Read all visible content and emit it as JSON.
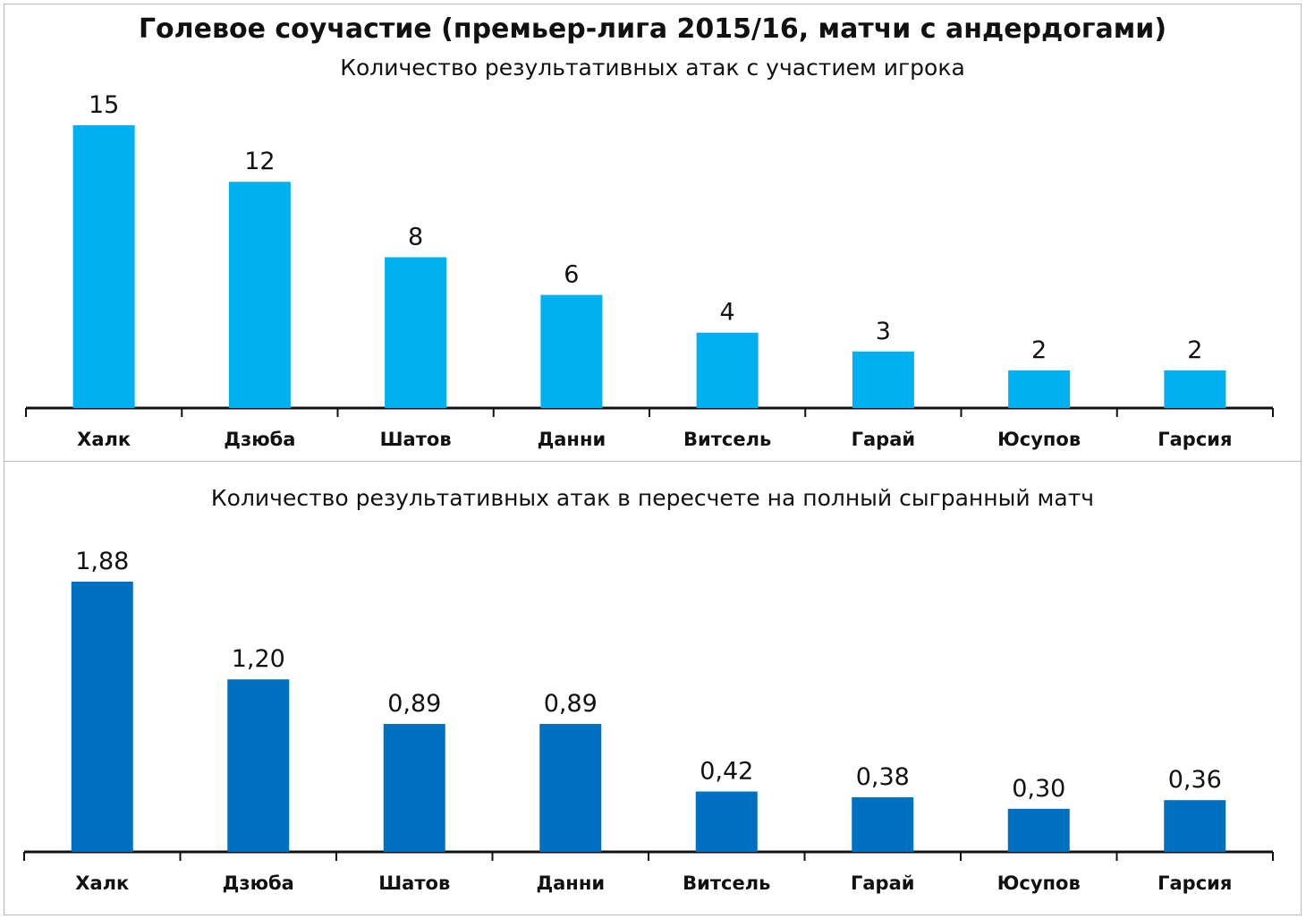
{
  "colors": {
    "top_bar": "#00b0f0",
    "bottom_bar": "#0070c0",
    "axis": "#111111"
  },
  "title": "Голевое соучастие (премьер-лига 2015/16, матчи с андердогами)",
  "chart_data": [
    {
      "type": "bar",
      "title": "Голевое соучастие (премьер-лига 2015/16, матчи с андердогами)",
      "subtitle": "Количество результативных атак с участием игрока",
      "categories": [
        "Халк",
        "Дзюба",
        "Шатов",
        "Данни",
        "Витсель",
        "Гарай",
        "Юсупов",
        "Гарсия"
      ],
      "values": [
        15,
        12,
        8,
        6,
        4,
        3,
        2,
        2
      ],
      "labels": [
        "15",
        "12",
        "8",
        "6",
        "4",
        "3",
        "2",
        "2"
      ],
      "ylim": [
        0,
        15
      ],
      "xlabel": "",
      "ylabel": ""
    },
    {
      "type": "bar",
      "subtitle": "Количество результативных атак в пересчете на полный сыгранный матч",
      "categories": [
        "Халк",
        "Дзюба",
        "Шатов",
        "Данни",
        "Витсель",
        "Гарай",
        "Юсупов",
        "Гарсия"
      ],
      "values": [
        1.88,
        1.2,
        0.89,
        0.89,
        0.42,
        0.38,
        0.3,
        0.36
      ],
      "labels": [
        "1,88",
        "1,20",
        "0,89",
        "0,89",
        "0,42",
        "0,38",
        "0,30",
        "0,36"
      ],
      "ylim": [
        0,
        1.88
      ],
      "xlabel": "",
      "ylabel": ""
    }
  ]
}
